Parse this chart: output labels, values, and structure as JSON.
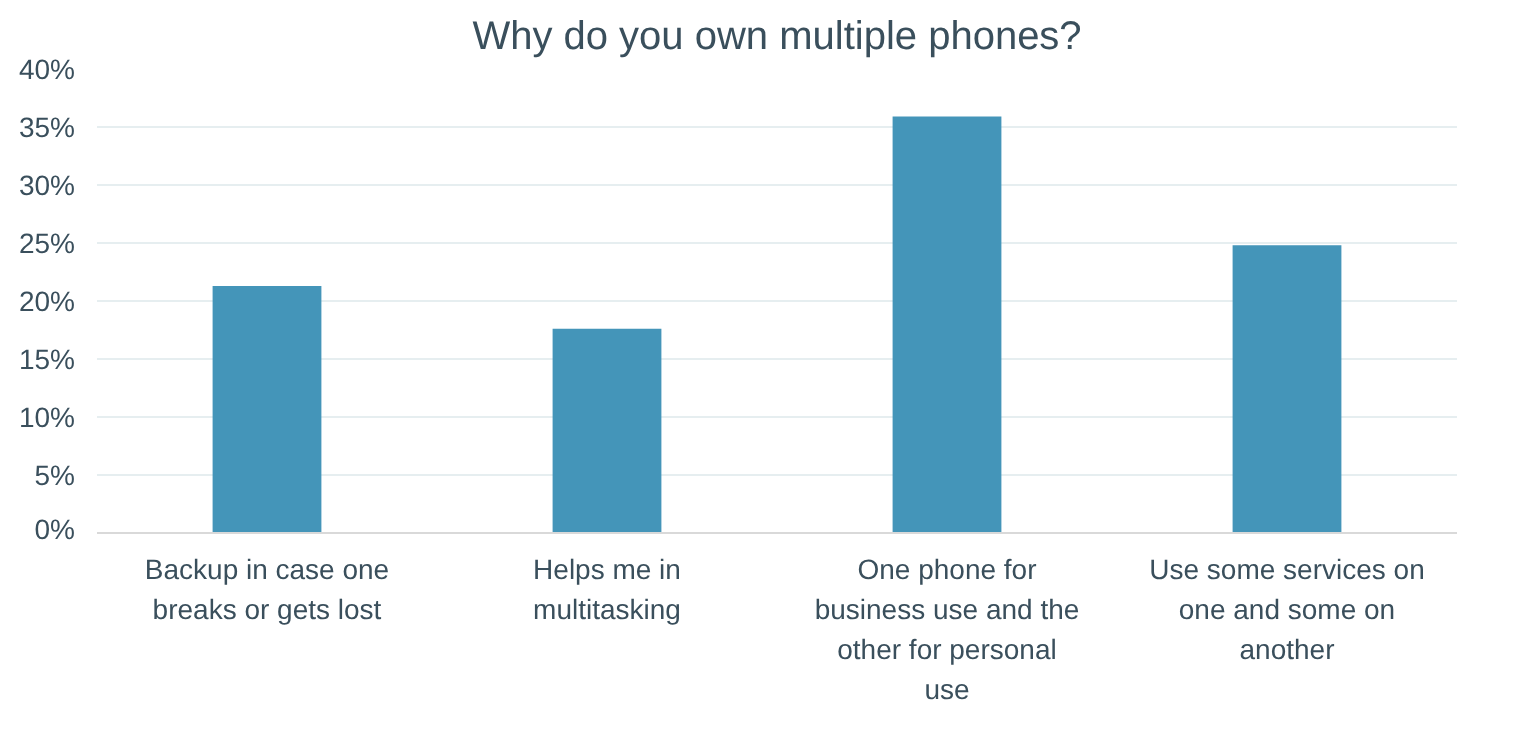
{
  "chart_data": {
    "type": "bar",
    "title": "Why do you own multiple phones?",
    "categories": [
      "Backup in case one breaks or gets lost",
      "Helps me in multitasking",
      "One phone for business use and the other for personal use",
      "Use some services on one and some on another"
    ],
    "values": [
      21.3,
      17.6,
      35.9,
      24.8
    ],
    "color": "#4495b9",
    "ylim": [
      0,
      40
    ],
    "yticks": [
      {
        "value": 0,
        "label": "0%"
      },
      {
        "value": 5,
        "label": "5%"
      },
      {
        "value": 10,
        "label": "10%"
      },
      {
        "value": 15,
        "label": "15%"
      },
      {
        "value": 20,
        "label": "20%"
      },
      {
        "value": 25,
        "label": "25%"
      },
      {
        "value": 30,
        "label": "30%"
      },
      {
        "value": 35,
        "label": "35%"
      },
      {
        "value": 40,
        "label": "40%"
      }
    ],
    "grid": "y",
    "legend": false
  }
}
